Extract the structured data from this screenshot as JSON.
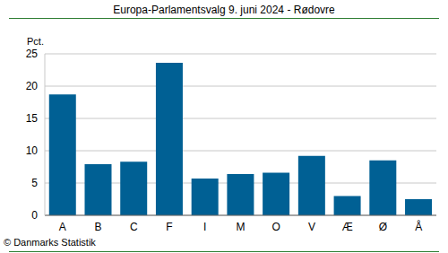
{
  "chart_data": {
    "type": "bar",
    "title": "Europa-Parlamentsvalg 9. juni 2024 - Rødovre",
    "y_label": "Pct.",
    "annotations": [
      "© Danmarks Statistik"
    ],
    "categories": [
      "A",
      "B",
      "C",
      "F",
      "I",
      "M",
      "O",
      "V",
      "Æ",
      "Ø",
      "Å"
    ],
    "values": [
      18.7,
      7.9,
      8.3,
      23.6,
      5.7,
      6.4,
      6.6,
      9.2,
      3.0,
      8.5,
      2.5
    ],
    "color": "#006094",
    "ylim": [
      0,
      25
    ],
    "yticks": [
      0,
      5,
      10,
      15,
      20,
      25
    ],
    "grid": true
  }
}
